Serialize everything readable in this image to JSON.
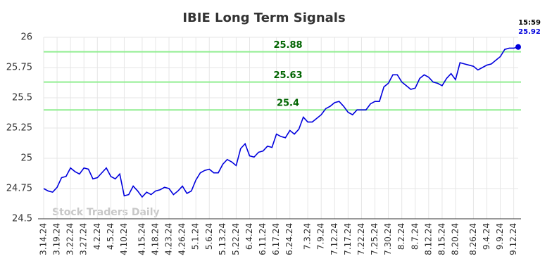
{
  "chart_data": {
    "type": "line",
    "title": "IBIE Long Term Signals",
    "categories": [
      "3.14.24",
      null,
      null,
      "3.19.24",
      null,
      null,
      "3.22.24",
      null,
      null,
      "3.27.24",
      null,
      null,
      "4.2.24",
      null,
      null,
      "4.5.24",
      null,
      null,
      "4.10.24",
      null,
      null,
      null,
      "4.15.24",
      null,
      null,
      "4.18.24",
      null,
      null,
      "4.23.24",
      null,
      null,
      "4.26.24",
      null,
      null,
      "5.1.24",
      null,
      null,
      "5.6.24",
      null,
      null,
      "5.13.24",
      null,
      null,
      "5.22.24",
      null,
      null,
      "6.4.24",
      null,
      null,
      "6.11.24",
      null,
      null,
      "6.17.24",
      null,
      null,
      "6.24.24",
      null,
      null,
      null,
      "7.3.24",
      null,
      null,
      "7.9.24",
      null,
      null,
      "7.12.24",
      null,
      null,
      "7.17.24",
      null,
      null,
      "7.22.24",
      null,
      null,
      "7.25.24",
      null,
      null,
      "7.30.24",
      null,
      null,
      "8.2.24",
      null,
      null,
      "8.7.24",
      null,
      null,
      "8.12.24",
      null,
      null,
      "8.15.24",
      null,
      null,
      "8.20.24",
      null,
      null,
      null,
      "8.26.24",
      null,
      null,
      "9.4.24",
      null,
      null,
      "9.9.24",
      null,
      null,
      "9.12.24",
      null
    ],
    "values": [
      24.75,
      24.73,
      24.72,
      24.76,
      24.84,
      24.85,
      24.92,
      24.89,
      24.87,
      24.92,
      24.91,
      24.83,
      24.84,
      24.88,
      24.92,
      24.85,
      24.83,
      24.87,
      24.69,
      24.7,
      24.77,
      24.73,
      24.68,
      24.72,
      24.7,
      24.73,
      24.74,
      24.76,
      24.75,
      24.7,
      24.73,
      24.77,
      24.71,
      24.73,
      24.82,
      24.88,
      24.9,
      24.91,
      24.88,
      24.88,
      24.95,
      24.99,
      24.97,
      24.94,
      25.08,
      25.12,
      25.02,
      25.01,
      25.05,
      25.06,
      25.1,
      25.09,
      25.2,
      25.18,
      25.17,
      25.23,
      25.2,
      25.24,
      25.34,
      25.3,
      25.3,
      25.33,
      25.36,
      25.41,
      25.43,
      25.46,
      25.47,
      25.43,
      25.38,
      25.36,
      25.4,
      25.4,
      25.4,
      25.45,
      25.47,
      25.47,
      25.59,
      25.62,
      25.69,
      25.69,
      25.63,
      25.6,
      25.57,
      25.58,
      25.66,
      25.69,
      25.67,
      25.63,
      25.62,
      25.6,
      25.66,
      25.7,
      25.65,
      25.79,
      25.78,
      25.77,
      25.76,
      25.73,
      25.75,
      25.77,
      25.78,
      25.81,
      25.84,
      25.9,
      25.91,
      25.91,
      25.92
    ],
    "color": "#0000dd",
    "ylim": [
      24.5,
      26
    ],
    "yticks": [
      24.5,
      24.75,
      25,
      25.25,
      25.5,
      25.75,
      26
    ],
    "grid": true,
    "signal_levels": [
      25.88,
      25.63,
      25.4
    ],
    "signal_color": "#90ee90",
    "last_time": "15:59",
    "watermark": "Stock Traders Daily"
  }
}
